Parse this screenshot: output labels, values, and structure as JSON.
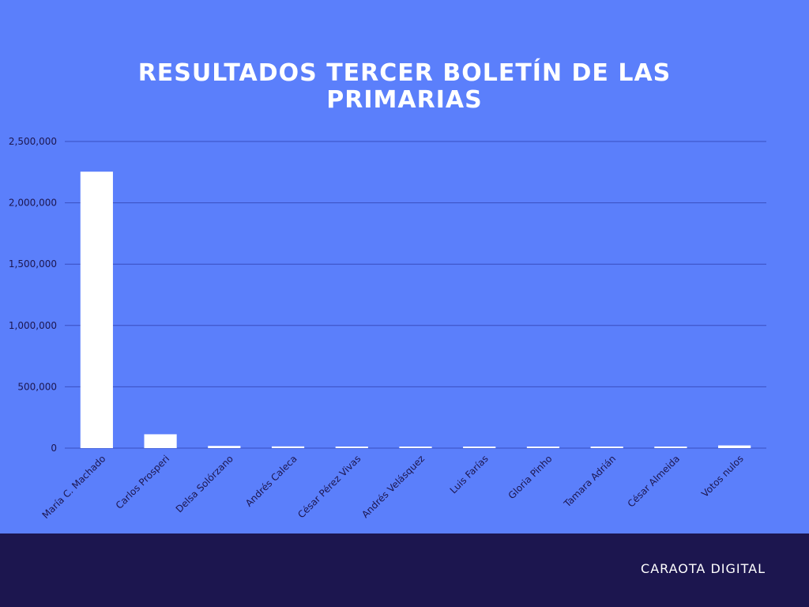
{
  "chart_data": {
    "type": "bar",
    "title": "RESULTADOS TERCER BOLETÍN DE LAS PRIMARIAS",
    "categories": [
      "María C. Machado",
      "Carlos Prosperi",
      "Delsa Solórzano",
      "Andrés Caleca",
      "César Pérez Vivas",
      "Andrés Velásquez",
      "Luis Farías",
      "Gloria Pinho",
      "Tamara Adrián",
      "César Almeida",
      "Votos nulos"
    ],
    "values": [
      2253825,
      113117,
      18000,
      14000,
      8000,
      5000,
      3500,
      3000,
      2500,
      2000,
      22000
    ],
    "ylim": [
      0,
      2500000
    ],
    "yticks": [
      0,
      500000,
      1000000,
      1500000,
      2000000,
      2500000
    ],
    "ytick_labels": [
      "0",
      "500,000",
      "1,000,000",
      "1,500,000",
      "2,000,000",
      "2,500,000"
    ],
    "grid": true,
    "colors": {
      "background": "#5b7ffb",
      "bar": "#ffffff",
      "grid": "#3a4fc0",
      "text": "#1c164f"
    }
  },
  "footer": {
    "brand": "CARAOTA DIGITAL",
    "background": "#1c164f"
  }
}
